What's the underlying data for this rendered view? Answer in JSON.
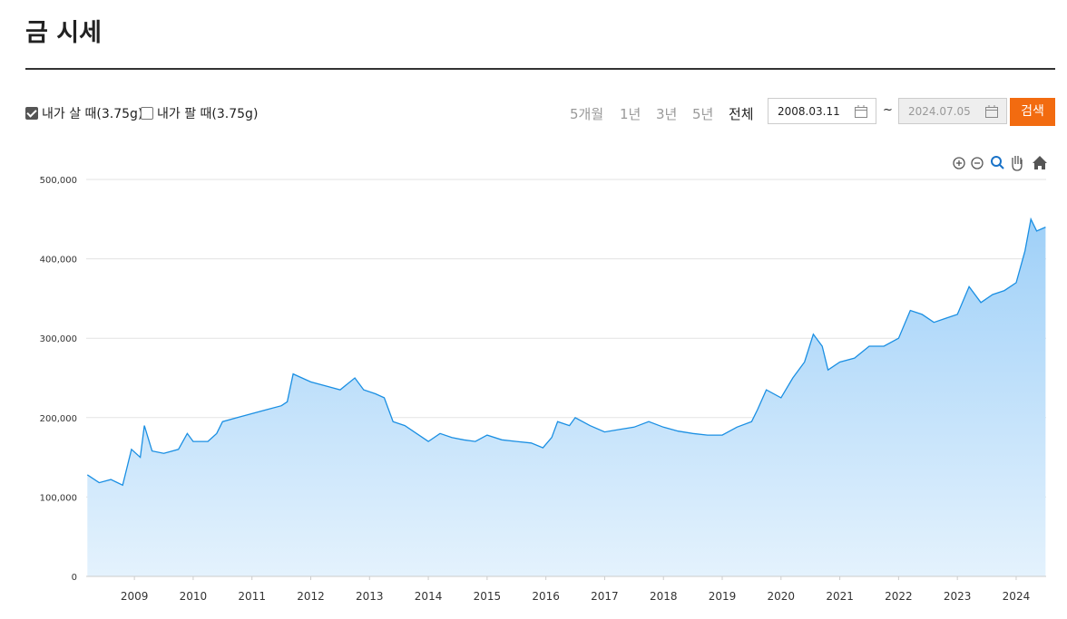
{
  "header": {
    "title": "금 시세"
  },
  "controls": {
    "options": [
      "내가 살 때(3.75g)",
      "내가 팔 때(3.75g)"
    ],
    "periods": [
      "5개월",
      "1년",
      "3년",
      "5년",
      "전체"
    ],
    "start_date": "2008.03.11",
    "separator": "~",
    "end_date": "2024.07.05",
    "search": "검색"
  },
  "chart_data": {
    "type": "area",
    "color": "#1a8fe3",
    "grid": true,
    "xlim": [
      2008.18,
      2024.51
    ],
    "xticks": [
      2009,
      2010,
      2011,
      2012,
      2013,
      2014,
      2015,
      2016,
      2017,
      2018,
      2019,
      2020,
      2021,
      2022,
      2023,
      2024
    ],
    "ylim": [
      0,
      500000
    ],
    "yticks": [
      0,
      {
        "value": 100000,
        "label": "100,000"
      },
      {
        "value": 200000,
        "label": "200,000"
      },
      {
        "value": 300000,
        "label": "300,000"
      },
      {
        "value": 400000,
        "label": "400,000"
      },
      {
        "value": 500000,
        "label": "500,000"
      }
    ],
    "x": [
      2008.2,
      2008.4,
      2008.6,
      2008.8,
      2008.95,
      2009.1,
      2009.17,
      2009.3,
      2009.5,
      2009.75,
      2009.9,
      2010.0,
      2010.25,
      2010.4,
      2010.5,
      2010.75,
      2011.0,
      2011.25,
      2011.5,
      2011.6,
      2011.7,
      2011.85,
      2012.0,
      2012.25,
      2012.5,
      2012.75,
      2012.9,
      2013.1,
      2013.25,
      2013.4,
      2013.6,
      2013.8,
      2014.0,
      2014.2,
      2014.4,
      2014.6,
      2014.8,
      2015.0,
      2015.25,
      2015.5,
      2015.75,
      2015.95,
      2016.1,
      2016.2,
      2016.4,
      2016.5,
      2016.75,
      2017.0,
      2017.25,
      2017.5,
      2017.75,
      2018.0,
      2018.25,
      2018.5,
      2018.75,
      2019.0,
      2019.25,
      2019.5,
      2019.6,
      2019.75,
      2020.0,
      2020.2,
      2020.4,
      2020.55,
      2020.7,
      2020.8,
      2021.0,
      2021.25,
      2021.5,
      2021.75,
      2022.0,
      2022.2,
      2022.4,
      2022.6,
      2022.8,
      2023.0,
      2023.2,
      2023.4,
      2023.6,
      2023.8,
      2024.0,
      2024.15,
      2024.25,
      2024.35,
      2024.5
    ],
    "values": [
      128000,
      118000,
      122000,
      115000,
      160000,
      150000,
      190000,
      158000,
      155000,
      160000,
      180000,
      170000,
      170000,
      180000,
      195000,
      200000,
      205000,
      210000,
      215000,
      220000,
      255000,
      250000,
      245000,
      240000,
      235000,
      250000,
      235000,
      230000,
      225000,
      195000,
      190000,
      180000,
      170000,
      180000,
      175000,
      172000,
      170000,
      178000,
      172000,
      170000,
      168000,
      162000,
      175000,
      195000,
      190000,
      200000,
      190000,
      182000,
      185000,
      188000,
      195000,
      188000,
      183000,
      180000,
      178000,
      178000,
      188000,
      195000,
      210000,
      235000,
      225000,
      250000,
      270000,
      305000,
      290000,
      260000,
      270000,
      275000,
      290000,
      290000,
      300000,
      335000,
      330000,
      320000,
      325000,
      330000,
      365000,
      345000,
      355000,
      360000,
      370000,
      410000,
      450000,
      435000,
      440000
    ]
  }
}
